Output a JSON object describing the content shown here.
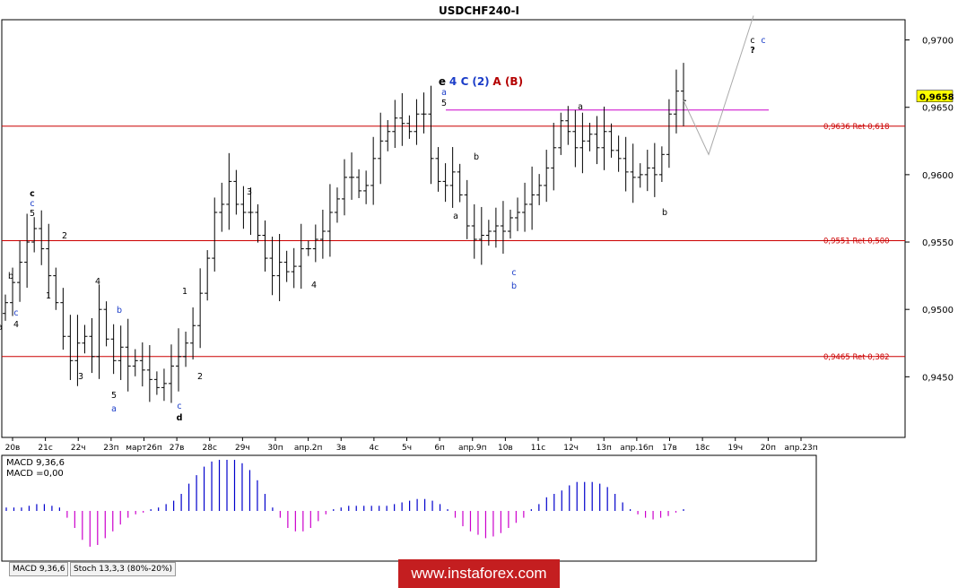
{
  "chart_data": {
    "type": "candlestick",
    "title": "USDCHF240-I",
    "price_axis": {
      "ticks": [
        "0,9700",
        "0,9650",
        "0,9600",
        "0,9550",
        "0,9500",
        "0,9450"
      ],
      "tick_values": [
        0.97,
        0.965,
        0.96,
        0.955,
        0.95,
        0.945
      ],
      "range": [
        0.9405,
        0.9715
      ],
      "current_price": "0,9658",
      "current_value": 0.9658
    },
    "time_axis": {
      "labels": [
        "20в",
        "21с",
        "22ч",
        "23п",
        "март26п",
        "27в",
        "28с",
        "29ч",
        "30п",
        "апр.2п",
        "3в",
        "4с",
        "5ч",
        "6п",
        "апр.9п",
        "10в",
        "11с",
        "12ч",
        "13п",
        "апр.16п",
        "17в",
        "18с",
        "19ч",
        "20п",
        "апр.23п"
      ]
    },
    "fibonacci_levels": [
      {
        "label": "0,9636 Ret 0,618",
        "value": 0.9636
      },
      {
        "label": "0,9551 Ret 0,500",
        "value": 0.9551
      },
      {
        "label": "0,9465 Ret 0,382",
        "value": 0.9465
      }
    ],
    "resistance_line_value": 0.9648,
    "close_series": [
      0.9505,
      0.952,
      0.9535,
      0.955,
      0.956,
      0.9545,
      0.9525,
      0.9505,
      0.948,
      0.9462,
      0.9475,
      0.948,
      0.9465,
      0.95,
      0.9478,
      0.9462,
      0.9472,
      0.9458,
      0.9462,
      0.9455,
      0.9448,
      0.9442,
      0.9445,
      0.9458,
      0.9465,
      0.9475,
      0.9488,
      0.9512,
      0.9538,
      0.9572,
      0.9578,
      0.9595,
      0.9578,
      0.9572,
      0.9572,
      0.9555,
      0.9538,
      0.9525,
      0.9535,
      0.9528,
      0.9532,
      0.9545,
      0.9545,
      0.9552,
      0.9558,
      0.9572,
      0.9582,
      0.9598,
      0.9598,
      0.9588,
      0.9592,
      0.9612,
      0.9625,
      0.9632,
      0.9642,
      0.9638,
      0.9632,
      0.9645,
      0.9645,
      0.9612,
      0.9595,
      0.9592,
      0.9602,
      0.9585,
      0.9562,
      0.9552,
      0.9555,
      0.9558,
      0.9562,
      0.9558,
      0.9568,
      0.9572,
      0.9578,
      0.9585,
      0.9592,
      0.9605,
      0.962,
      0.964,
      0.9632,
      0.962,
      0.9625,
      0.963,
      0.962,
      0.9632,
      0.9618,
      0.9612,
      0.9602,
      0.9598,
      0.96,
      0.9605,
      0.96,
      0.9615,
      0.9645,
      0.9662,
      0.9655
    ],
    "forecast_path": [
      [
        0.9655,
        0.9615
      ],
      [
        0.9615,
        0.9718
      ]
    ],
    "wave_labels": [
      {
        "text": "e",
        "color": "#000000",
        "bold": true
      },
      {
        "text": "4",
        "color": "#1a3cc8",
        "bold": true
      },
      {
        "text": "C",
        "color": "#1a3cc8",
        "bold": true
      },
      {
        "text": "(2)",
        "color": "#1a3cc8",
        "bold": true
      },
      {
        "text": "A",
        "color": "#b40000",
        "bold": true
      },
      {
        "text": "(B)",
        "color": "#b40000",
        "bold": true
      },
      {
        "text": "a",
        "color": "#1a3cc8"
      },
      {
        "text": "5",
        "color": "#000000"
      },
      {
        "text": "a",
        "color": "#000000"
      },
      {
        "text": "b",
        "color": "#000000"
      },
      {
        "text": "a",
        "color": "#000000"
      },
      {
        "text": "c",
        "color": "#1a3cc8"
      },
      {
        "text": "b",
        "color": "#1a3cc8"
      },
      {
        "text": "b",
        "color": "#000000"
      },
      {
        "text": "c",
        "color": "#000000",
        "bold": true
      },
      {
        "text": "c",
        "color": "#1a3cc8"
      },
      {
        "text": "5",
        "color": "#000000"
      },
      {
        "text": "2",
        "color": "#000000"
      },
      {
        "text": "1",
        "color": "#000000"
      },
      {
        "text": "b",
        "color": "#000000"
      },
      {
        "text": "c",
        "color": "#1a3cc8"
      },
      {
        "text": "4",
        "color": "#000000"
      },
      {
        "text": "a",
        "color": "#000000"
      },
      {
        "text": "4",
        "color": "#000000"
      },
      {
        "text": "b",
        "color": "#1a3cc8"
      },
      {
        "text": "3",
        "color": "#000000"
      },
      {
        "text": "5",
        "color": "#000000"
      },
      {
        "text": "a",
        "color": "#1a3cc8"
      },
      {
        "text": "1",
        "color": "#000000"
      },
      {
        "text": "2",
        "color": "#000000"
      },
      {
        "text": "c",
        "color": "#1a3cc8"
      },
      {
        "text": "d",
        "color": "#000000",
        "bold": true
      },
      {
        "text": "3",
        "color": "#000000"
      },
      {
        "text": "4",
        "color": "#000000"
      },
      {
        "text": "c",
        "color": "#000000"
      },
      {
        "text": "c",
        "color": "#1a3cc8"
      },
      {
        "text": "?",
        "color": "#000000",
        "bold": true
      }
    ],
    "macd": {
      "label": "MACD 9,36,6",
      "value_label": "MACD =0,00",
      "positive_color": "#0000cc",
      "negative_color": "#cc00cc"
    },
    "macd_histogram": [
      0.1,
      0.1,
      0.1,
      0.15,
      0.2,
      0.2,
      0.15,
      0.1,
      -0.2,
      -0.5,
      -0.85,
      -1.05,
      -1.0,
      -0.8,
      -0.6,
      -0.4,
      -0.2,
      -0.1,
      -0.05,
      0.05,
      0.1,
      0.2,
      0.3,
      0.5,
      0.8,
      1.05,
      1.3,
      1.45,
      1.5,
      1.5,
      1.5,
      1.4,
      1.2,
      0.9,
      0.5,
      0.1,
      -0.2,
      -0.5,
      -0.6,
      -0.6,
      -0.5,
      -0.3,
      -0.1,
      0.05,
      0.1,
      0.15,
      0.15,
      0.15,
      0.15,
      0.15,
      0.15,
      0.2,
      0.25,
      0.3,
      0.35,
      0.35,
      0.3,
      0.2,
      0.05,
      -0.2,
      -0.45,
      -0.6,
      -0.7,
      -0.8,
      -0.75,
      -0.65,
      -0.5,
      -0.35,
      -0.2,
      0.05,
      0.2,
      0.4,
      0.5,
      0.6,
      0.75,
      0.85,
      0.85,
      0.85,
      0.8,
      0.7,
      0.5,
      0.25,
      0.05,
      -0.1,
      -0.2,
      -0.25,
      -0.2,
      -0.15,
      -0.05,
      0.05
    ],
    "indicator_tabs": [
      "MACD 9,36,6",
      "Stoch 13,3,3 (80%-20%)"
    ],
    "watermark": "www.instaforex.com"
  }
}
